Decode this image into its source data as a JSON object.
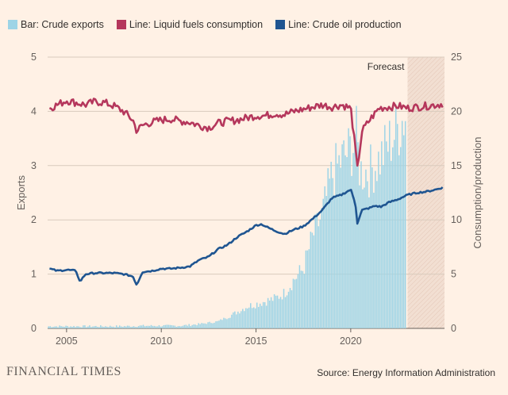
{
  "legend": [
    {
      "label": "Bar: Crude exports",
      "color": "#9dd4e6"
    },
    {
      "label": "Line: Liquid fuels consumption",
      "color": "#b5375c"
    },
    {
      "label": "Line: Crude oil production",
      "color": "#1f5591"
    }
  ],
  "footer": {
    "brand": "FINANCIAL TIMES",
    "source": "Source: Energy Information Administration"
  },
  "chart_data": {
    "type": "bar+line",
    "grid": true,
    "forecast_label": "Forecast",
    "forecast_start": 2023.0,
    "forecast_end": 2024.95,
    "x_ticks": [
      2005,
      2010,
      2015,
      2020
    ],
    "xlim": [
      2004.0,
      2024.95
    ],
    "left_axis": {
      "label": "Exports",
      "ticks": [
        0,
        1,
        2,
        3,
        4,
        5
      ],
      "ylim": [
        0,
        5
      ]
    },
    "right_axis": {
      "label": "Consumption/production",
      "ticks": [
        0,
        5,
        10,
        15,
        20,
        25
      ],
      "ylim": [
        0,
        25
      ]
    },
    "series": [
      {
        "name": "Bar: Crude exports",
        "kind": "bar",
        "axis": "left",
        "color": "#9dd4e6",
        "x": [
          2004,
          2005,
          2006,
          2007,
          2008,
          2009,
          2010,
          2011,
          2012,
          2013,
          2014,
          2014.5,
          2015,
          2015.5,
          2016,
          2016.5,
          2017,
          2017.5,
          2018,
          2018.5,
          2019,
          2019.5,
          2020,
          2020.3,
          2020.5,
          2021,
          2021.5,
          2022,
          2022.5,
          2022.95
        ],
        "values": [
          0.03,
          0.03,
          0.03,
          0.03,
          0.03,
          0.04,
          0.04,
          0.04,
          0.07,
          0.12,
          0.3,
          0.4,
          0.45,
          0.5,
          0.55,
          0.65,
          0.9,
          1.1,
          1.7,
          2.1,
          2.8,
          3.1,
          3.3,
          3.5,
          2.9,
          2.9,
          3.1,
          3.4,
          3.7,
          4.0
        ]
      },
      {
        "name": "Line: Liquid fuels consumption",
        "kind": "line",
        "axis": "right",
        "color": "#b5375c",
        "x": [
          2004.1,
          2004.5,
          2005,
          2005.5,
          2006,
          2006.5,
          2007,
          2007.5,
          2008,
          2008.5,
          2008.7,
          2009,
          2009.5,
          2010,
          2010.5,
          2011,
          2011.5,
          2012,
          2012.5,
          2013,
          2013.5,
          2014,
          2014.5,
          2015,
          2015.5,
          2016,
          2016.5,
          2017,
          2017.5,
          2018,
          2018.5,
          2019,
          2019.5,
          2020,
          2020.25,
          2020.35,
          2020.6,
          2021,
          2021.5,
          2022,
          2022.5,
          2023,
          2023.5,
          2024,
          2024.5,
          2024.9
        ],
        "values": [
          20.3,
          20.6,
          21.0,
          20.8,
          20.6,
          20.9,
          20.8,
          20.5,
          20.0,
          19.2,
          18.2,
          18.7,
          19.0,
          19.2,
          19.3,
          19.1,
          19.0,
          18.7,
          18.5,
          18.9,
          19.1,
          19.2,
          19.4,
          19.6,
          19.6,
          19.8,
          19.7,
          20.0,
          20.2,
          20.4,
          20.6,
          20.4,
          20.6,
          20.3,
          16.5,
          14.7,
          18.2,
          19.2,
          20.3,
          20.4,
          20.5,
          20.3,
          20.4,
          20.5,
          20.6,
          20.7
        ]
      },
      {
        "name": "Line: Crude oil production",
        "kind": "line",
        "axis": "right",
        "color": "#1f5591",
        "x": [
          2004.1,
          2004.5,
          2005,
          2005.5,
          2005.7,
          2006,
          2006.5,
          2007,
          2007.5,
          2008,
          2008.5,
          2008.7,
          2009,
          2009.5,
          2010,
          2010.5,
          2011,
          2011.5,
          2012,
          2012.5,
          2013,
          2013.5,
          2014,
          2014.5,
          2015,
          2015.3,
          2015.5,
          2016,
          2016.5,
          2017,
          2017.5,
          2018,
          2018.5,
          2019,
          2019.5,
          2020,
          2020.25,
          2020.35,
          2020.6,
          2021,
          2021.3,
          2021.6,
          2022,
          2022.5,
          2023,
          2023.5,
          2024,
          2024.5,
          2024.9
        ],
        "values": [
          5.5,
          5.3,
          5.4,
          5.3,
          4.3,
          5.0,
          5.1,
          5.1,
          5.1,
          5.0,
          4.8,
          4.0,
          5.2,
          5.3,
          5.5,
          5.5,
          5.6,
          5.7,
          6.3,
          6.6,
          7.3,
          7.7,
          8.4,
          8.9,
          9.5,
          9.6,
          9.4,
          9.0,
          8.7,
          9.1,
          9.4,
          10.1,
          10.9,
          12.0,
          12.3,
          12.8,
          11.5,
          9.7,
          10.9,
          11.1,
          11.3,
          11.2,
          11.6,
          11.9,
          12.3,
          12.5,
          12.6,
          12.8,
          13.0
        ]
      }
    ]
  }
}
